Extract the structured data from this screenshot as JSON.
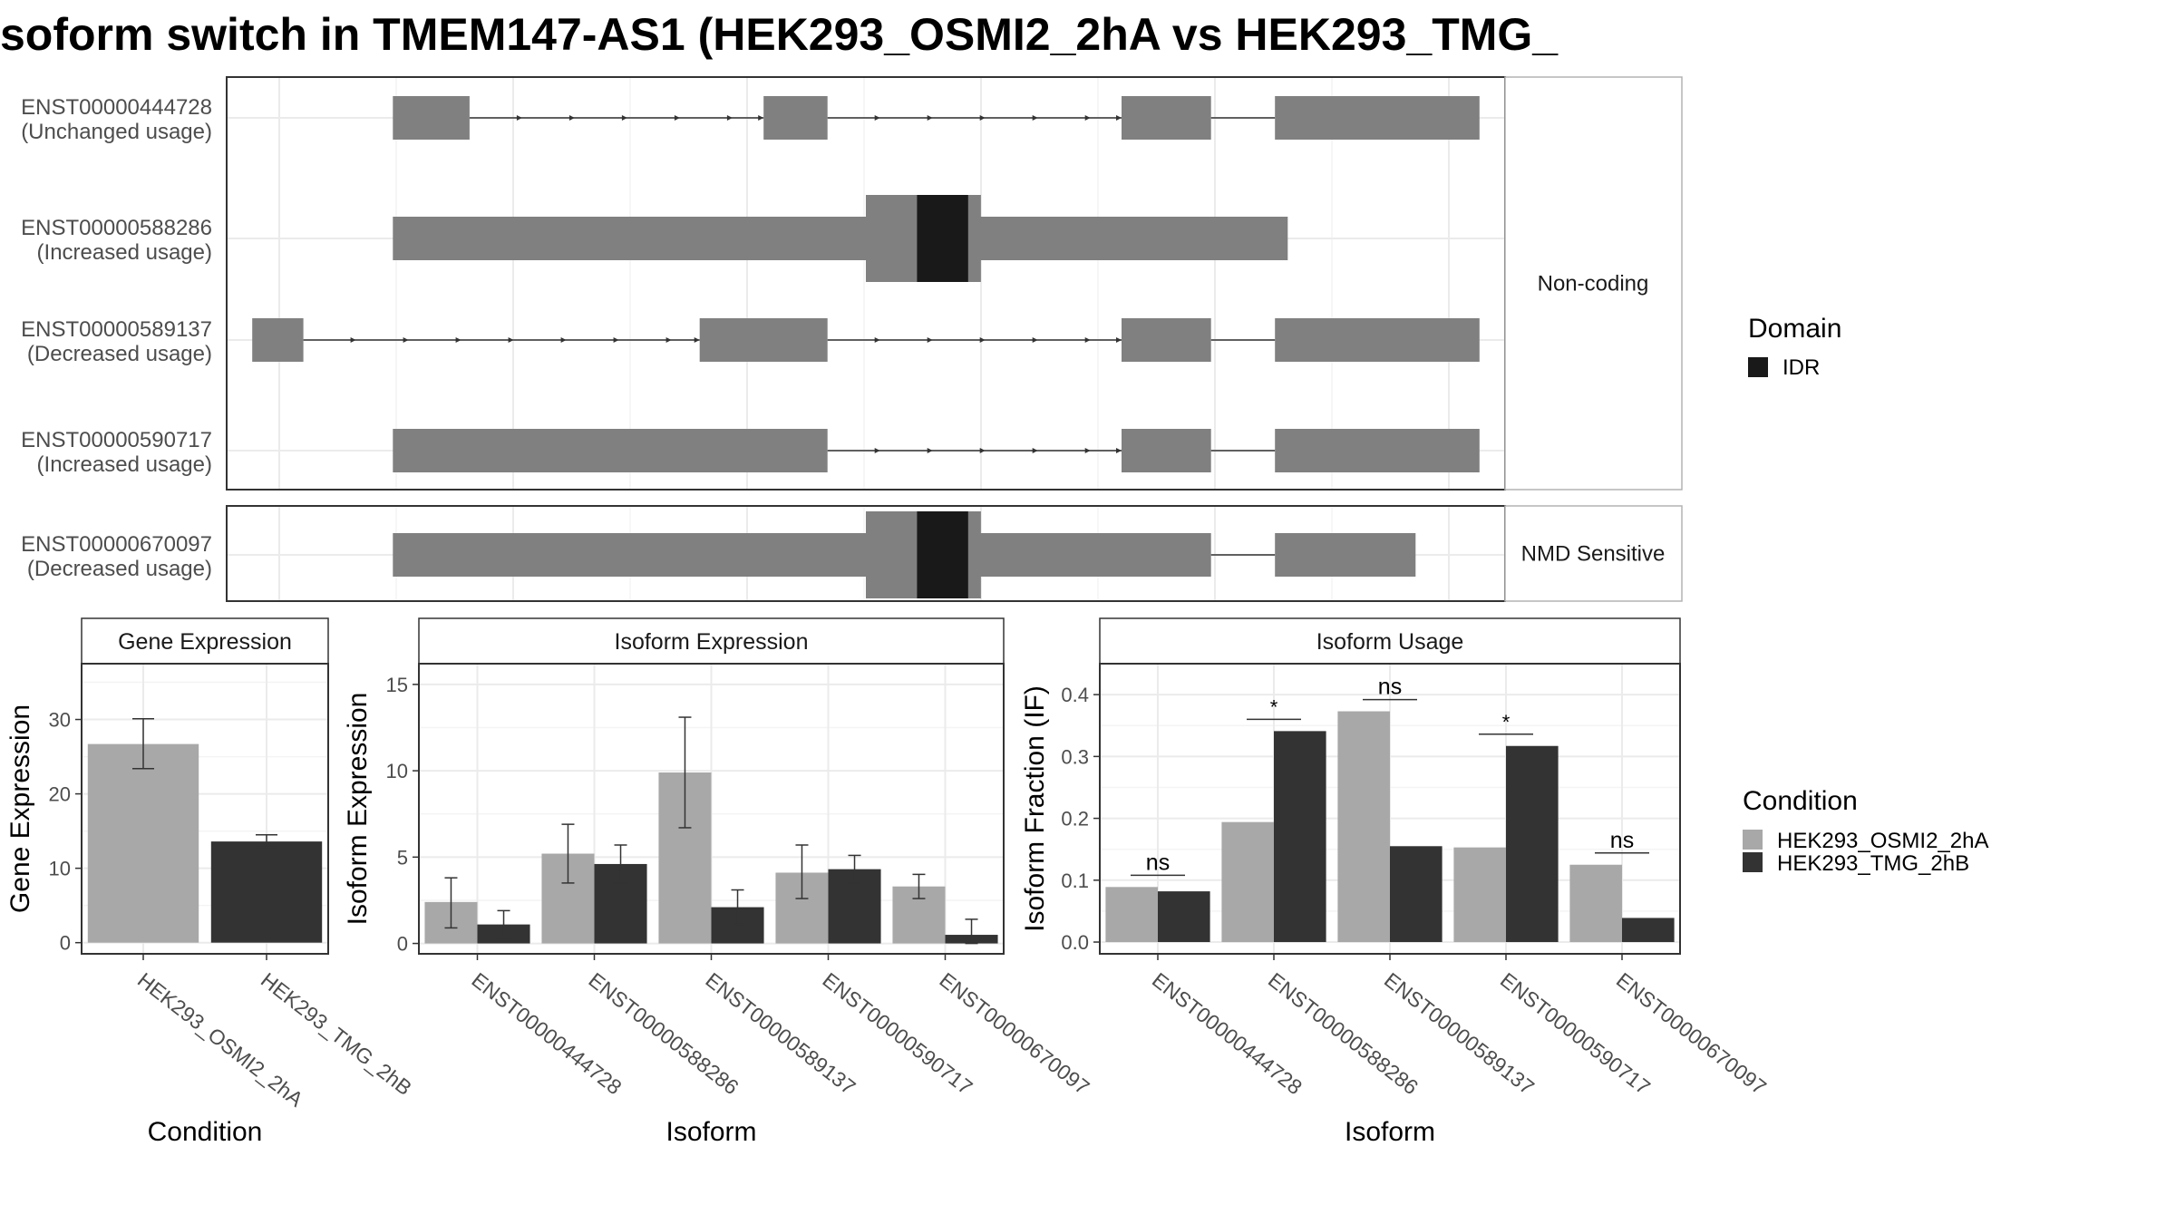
{
  "title": "soform switch in TMEM147-AS1 (HEK293_OSMI2_2hA vs HEK293_TMG_",
  "colors": {
    "exon": "#808080",
    "domain": "#191919",
    "cond_a": "#a8a8a8",
    "cond_b": "#333333",
    "panel_border": "#333333",
    "grid": "#ebebeb",
    "strip_border": "#b3b3b3"
  },
  "transcript_panel": {
    "groups": [
      {
        "label": "Non-coding",
        "transcripts": [
          0,
          1,
          2,
          3
        ]
      },
      {
        "label": "NMD Sensitive",
        "transcripts": [
          4
        ]
      }
    ],
    "transcripts": [
      {
        "id": "ENST00000444728",
        "usage": "(Unchanged usage)",
        "exons": [
          [
            0.13,
            0.19
          ],
          [
            0.42,
            0.47
          ],
          [
            0.7,
            0.77
          ],
          [
            0.82,
            0.98
          ]
        ],
        "cds": [],
        "domains": []
      },
      {
        "id": "ENST00000588286",
        "usage": "(Increased usage)",
        "exons": [
          [
            0.13,
            0.83
          ]
        ],
        "cds": [
          [
            0.5,
            0.59
          ]
        ],
        "domains": [
          [
            0.54,
            0.58
          ]
        ]
      },
      {
        "id": "ENST00000589137",
        "usage": "(Decreased usage)",
        "exons": [
          [
            0.02,
            0.06
          ],
          [
            0.37,
            0.47
          ],
          [
            0.7,
            0.77
          ],
          [
            0.82,
            0.98
          ]
        ],
        "cds": [],
        "domains": []
      },
      {
        "id": "ENST00000590717",
        "usage": "(Increased usage)",
        "exons": [
          [
            0.13,
            0.47
          ],
          [
            0.7,
            0.77
          ],
          [
            0.82,
            0.98
          ]
        ],
        "cds": [],
        "domains": []
      },
      {
        "id": "ENST00000670097",
        "usage": "(Decreased usage)",
        "exons": [
          [
            0.13,
            0.77
          ],
          [
            0.82,
            0.93
          ]
        ],
        "cds": [
          [
            0.5,
            0.59
          ]
        ],
        "domains": [
          [
            0.54,
            0.58
          ]
        ]
      }
    ],
    "legend_title": "Domain",
    "legend_items": [
      "IDR"
    ]
  },
  "chart_data": [
    {
      "type": "bar",
      "title": "Gene Expression",
      "xlabel": "Condition",
      "ylabel": "Gene Expression",
      "ylim": [
        -1.5,
        37.5
      ],
      "yticks": [
        0,
        10,
        20,
        30
      ],
      "categories": [
        "HEK293_OSMI2_2hA",
        "HEK293_TMG_2hB"
      ],
      "values": [
        26.7,
        13.6
      ],
      "errors": [
        [
          23.4,
          30.1
        ],
        [
          12.8,
          14.5
        ]
      ]
    },
    {
      "type": "bar",
      "title": "Isoform Expression",
      "xlabel": "Isoform",
      "ylabel": "Isoform Expression",
      "ylim": [
        -0.6,
        16.2
      ],
      "yticks": [
        0,
        5,
        10,
        15
      ],
      "categories": [
        "ENST00000444728",
        "ENST00000588286",
        "ENST00000589137",
        "ENST00000590717",
        "ENST00000670097"
      ],
      "series": [
        {
          "name": "HEK293_OSMI2_2hA",
          "values": [
            2.4,
            5.2,
            9.9,
            4.1,
            3.3
          ],
          "errors": [
            [
              0.9,
              3.8
            ],
            [
              3.5,
              6.9
            ],
            [
              6.7,
              13.1
            ],
            [
              2.6,
              5.7
            ],
            [
              2.6,
              4.0
            ]
          ]
        },
        {
          "name": "HEK293_TMG_2hB",
          "values": [
            1.1,
            4.6,
            2.1,
            4.3,
            0.5
          ],
          "errors": [
            [
              0.3,
              1.9
            ],
            [
              3.5,
              5.7
            ],
            [
              1.1,
              3.1
            ],
            [
              3.5,
              5.1
            ],
            [
              0.0,
              1.4
            ]
          ]
        }
      ]
    },
    {
      "type": "bar",
      "title": "Isoform Usage",
      "xlabel": "Isoform",
      "ylabel": "Isoform Fraction (IF)",
      "ylim": [
        -0.019,
        0.45
      ],
      "yticks": [
        0.0,
        0.1,
        0.2,
        0.3,
        0.4
      ],
      "ytick_labels": [
        "0.0",
        "0.1",
        "0.2",
        "0.3",
        "0.4"
      ],
      "categories": [
        "ENST00000444728",
        "ENST00000588286",
        "ENST00000589137",
        "ENST00000590717",
        "ENST00000670097"
      ],
      "series": [
        {
          "name": "HEK293_OSMI2_2hA",
          "values": [
            0.089,
            0.194,
            0.373,
            0.153,
            0.125
          ]
        },
        {
          "name": "HEK293_TMG_2hB",
          "values": [
            0.082,
            0.341,
            0.155,
            0.317,
            0.039
          ]
        }
      ],
      "significance": [
        "ns",
        "*",
        "ns",
        "*",
        "ns"
      ],
      "significance_y": [
        0.108,
        0.36,
        0.392,
        0.336,
        0.144
      ]
    }
  ],
  "condition_legend": {
    "title": "Condition",
    "items": [
      "HEK293_OSMI2_2hA",
      "HEK293_TMG_2hB"
    ]
  }
}
